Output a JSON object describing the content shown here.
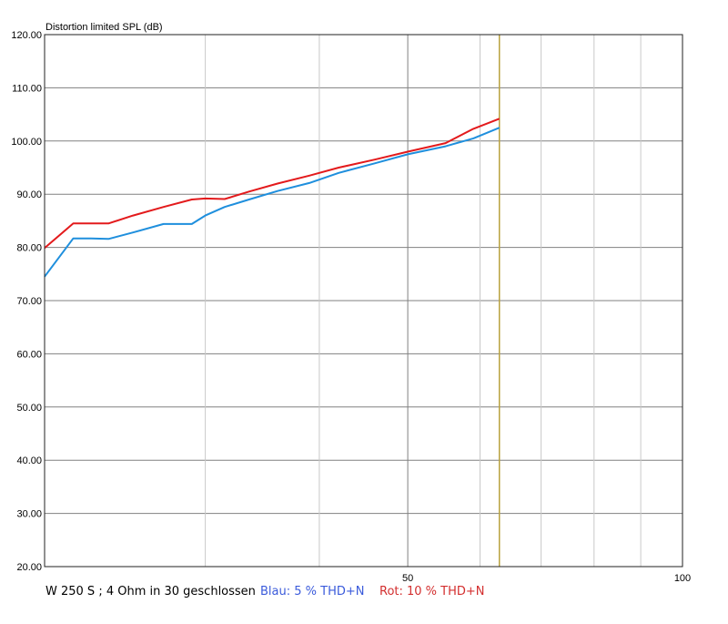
{
  "chart_data": {
    "type": "line",
    "title": "Distortion limited SPL (dB)",
    "xscale": "log",
    "xlim": [
      20,
      100
    ],
    "ylim": [
      20,
      120
    ],
    "xticks": [
      50,
      100
    ],
    "yticks": [
      20,
      30,
      40,
      50,
      60,
      70,
      80,
      90,
      100,
      110,
      120
    ],
    "ytick_labels": [
      "20.00",
      "30.00",
      "40.00",
      "50.00",
      "60.00",
      "70.00",
      "80.00",
      "90.00",
      "100.00",
      "110.00",
      "120.00"
    ],
    "grid": true,
    "vertical_marker": {
      "x": 63,
      "color": "#b9a23f"
    },
    "series": [
      {
        "name": "Blau: 5 % THD+N",
        "color": "#1f8fdd",
        "x": [
          20,
          21.5,
          22.5,
          23.5,
          25,
          27,
          29,
          30,
          31.5,
          33.5,
          36,
          39,
          42,
          46,
          50,
          55,
          59,
          63
        ],
        "y": [
          74.5,
          81.7,
          81.7,
          81.6,
          82.8,
          84.4,
          84.4,
          86.0,
          87.6,
          89.0,
          90.6,
          92.1,
          94.0,
          95.8,
          97.5,
          99.0,
          100.5,
          102.5
        ]
      },
      {
        "name": "Rot: 10 % THD+N",
        "color": "#e31a1c",
        "x": [
          20,
          21.5,
          22.5,
          23.5,
          25,
          27,
          29,
          30,
          31.5,
          33.5,
          36,
          39,
          42,
          46,
          50,
          55,
          59,
          63
        ],
        "y": [
          79.9,
          84.5,
          84.5,
          84.5,
          86.0,
          87.6,
          89.0,
          89.2,
          89.1,
          90.5,
          92.0,
          93.5,
          95.0,
          96.5,
          98.0,
          99.6,
          102.3,
          104.2
        ]
      }
    ]
  },
  "caption": "W 250 S ; 4 Ohm in 30 geschlossen",
  "legend": {
    "blue_label": "Blau: 5 % THD+N",
    "blue_color": "#3b5bdb",
    "red_label": "Rot: 10 % THD+N",
    "red_color": "#d32f2f"
  }
}
